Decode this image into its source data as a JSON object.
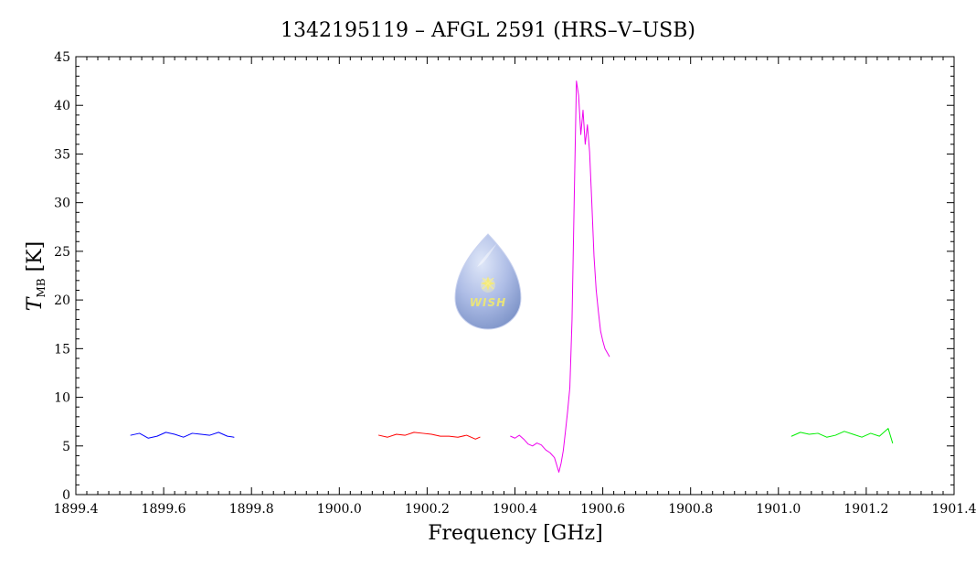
{
  "chart_data": {
    "type": "line",
    "title": "1342195119 – AFGL 2591 (HRS–V–USB)",
    "xlabel": "Frequency [GHz]",
    "ylabel_main": "T",
    "ylabel_subscript": "MB",
    "ylabel_units": " [K]",
    "xlim": [
      1899.4,
      1901.4
    ],
    "ylim": [
      0,
      45
    ],
    "x_ticks": [
      1899.4,
      1899.6,
      1899.8,
      1900.0,
      1900.2,
      1900.4,
      1900.6,
      1900.8,
      1901.0,
      1901.2,
      1901.4
    ],
    "x_tick_labels": [
      "1899.4",
      "1899.6",
      "1899.8",
      "1900.0",
      "1900.2",
      "1900.4",
      "1900.6",
      "1900.8",
      "1901.0",
      "1901.2",
      "1901.4"
    ],
    "y_ticks": [
      0,
      5,
      10,
      15,
      20,
      25,
      30,
      35,
      40,
      45
    ],
    "y_tick_labels": [
      "0",
      "5",
      "10",
      "15",
      "20",
      "25",
      "30",
      "35",
      "40",
      "45"
    ],
    "grid": false,
    "logo": {
      "text": "WISH",
      "colors": {
        "drop_light": "#dfe7f8",
        "drop_mid": "#aebde6",
        "drop_dark": "#7f95c9",
        "star": "#f4e97a"
      }
    },
    "series": [
      {
        "color": "#0000ff",
        "x": [
          1899.525,
          1899.545,
          1899.565,
          1899.585,
          1899.605,
          1899.625,
          1899.645,
          1899.665,
          1899.685,
          1899.705,
          1899.725,
          1899.745,
          1899.76
        ],
        "y": [
          6.1,
          6.3,
          5.8,
          6.0,
          6.4,
          6.2,
          5.9,
          6.3,
          6.2,
          6.1,
          6.4,
          6.0,
          5.9
        ]
      },
      {
        "color": "#ff0000",
        "x": [
          1900.09,
          1900.11,
          1900.13,
          1900.15,
          1900.17,
          1900.19,
          1900.21,
          1900.23,
          1900.25,
          1900.27,
          1900.29,
          1900.31,
          1900.32
        ],
        "y": [
          6.1,
          5.9,
          6.2,
          6.1,
          6.4,
          6.3,
          6.2,
          6.0,
          6.0,
          5.9,
          6.1,
          5.7,
          5.9
        ]
      },
      {
        "color": "#ee00ee",
        "x": [
          1900.39,
          1900.4,
          1900.41,
          1900.42,
          1900.43,
          1900.44,
          1900.45,
          1900.46,
          1900.47,
          1900.48,
          1900.49,
          1900.5,
          1900.505,
          1900.51,
          1900.515,
          1900.52,
          1900.525,
          1900.53,
          1900.535,
          1900.54,
          1900.545,
          1900.55,
          1900.555,
          1900.56,
          1900.565,
          1900.57,
          1900.575,
          1900.58,
          1900.585,
          1900.59,
          1900.595,
          1900.6,
          1900.605,
          1900.61,
          1900.615
        ],
        "y": [
          6.0,
          5.8,
          6.1,
          5.7,
          5.2,
          5.0,
          5.3,
          5.1,
          4.6,
          4.3,
          3.8,
          2.3,
          3.2,
          4.5,
          6.5,
          8.6,
          11.0,
          18.0,
          30.5,
          42.5,
          41.0,
          37.0,
          39.5,
          36.0,
          38.0,
          35.2,
          30.0,
          24.5,
          21.0,
          18.8,
          16.8,
          15.8,
          15.0,
          14.6,
          14.2
        ]
      },
      {
        "color": "#00ee00",
        "x": [
          1901.03,
          1901.05,
          1901.07,
          1901.09,
          1901.11,
          1901.13,
          1901.15,
          1901.17,
          1901.19,
          1901.21,
          1901.23,
          1901.25,
          1901.26
        ],
        "y": [
          6.0,
          6.4,
          6.2,
          6.3,
          5.9,
          6.1,
          6.5,
          6.2,
          5.9,
          6.3,
          6.0,
          6.8,
          5.3
        ]
      }
    ]
  }
}
